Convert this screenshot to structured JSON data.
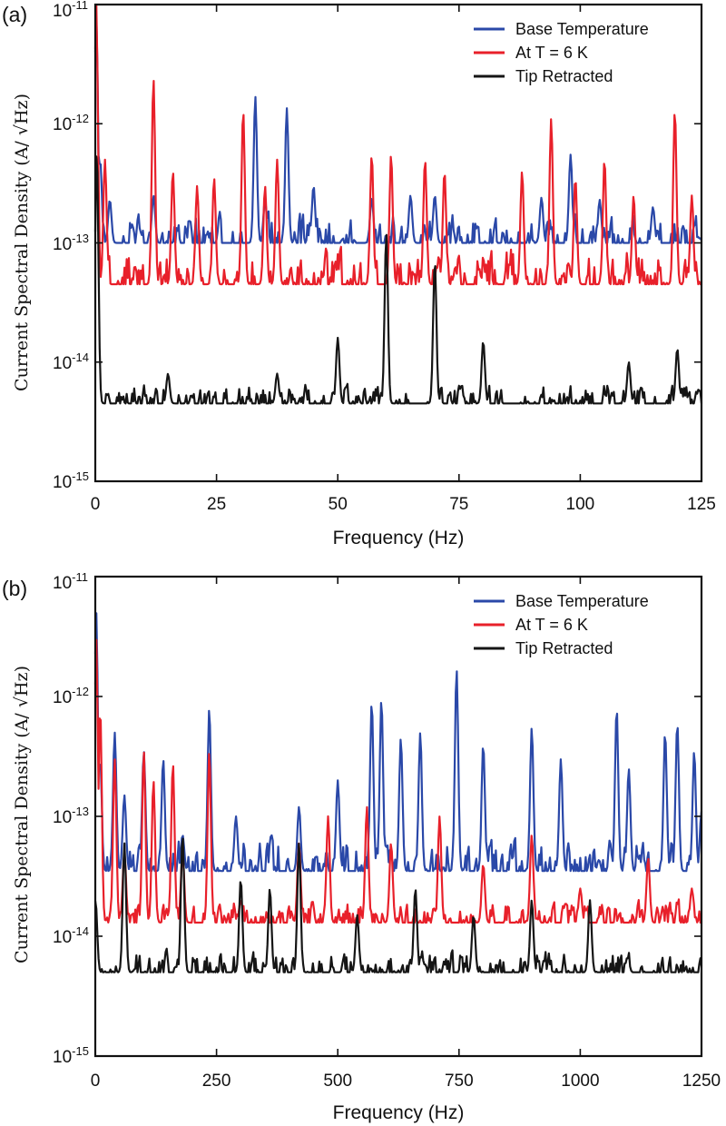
{
  "chart_data": [
    {
      "panel_label": "(a)",
      "type": "line",
      "xlabel": "Frequency (Hz)",
      "ylabel": "Current Spectral Density (A/ √Hz)",
      "xlim": [
        0,
        125
      ],
      "ylim": [
        1e-15,
        1e-11
      ],
      "yscale": "log",
      "x_ticks": [
        0,
        25,
        50,
        75,
        100,
        125
      ],
      "y_ticks": [
        {
          "value": 1e-15,
          "base": "10",
          "exp": "-15"
        },
        {
          "value": 1e-14,
          "base": "10",
          "exp": "-14"
        },
        {
          "value": 1e-13,
          "base": "10",
          "exp": "-13"
        },
        {
          "value": 1e-12,
          "base": "10",
          "exp": "-12"
        },
        {
          "value": 1e-11,
          "base": "10",
          "exp": "-11"
        }
      ],
      "legend_position": "top-right",
      "series": [
        {
          "name": "Base Temperature",
          "color": "#2a48a8",
          "baseline": 1e-13,
          "noise_decades": 0.18,
          "peaks": [
            [
              0.2,
              8e-12
            ],
            [
              1,
              5e-13
            ],
            [
              3,
              2.3e-13
            ],
            [
              12,
              2.5e-13
            ],
            [
              33,
              1.7e-12
            ],
            [
              35,
              2.3e-13
            ],
            [
              39.5,
              1.35e-12
            ],
            [
              45,
              3e-13
            ],
            [
              57,
              2.4e-13
            ],
            [
              65,
              2.5e-13
            ],
            [
              70,
              2.5e-13
            ],
            [
              92,
              2.4e-13
            ],
            [
              98,
              5.5e-13
            ],
            [
              104,
              2.3e-13
            ],
            [
              115,
              2e-13
            ]
          ]
        },
        {
          "name": "At T = 6 K",
          "color": "#e8202a",
          "baseline": 4.5e-14,
          "noise_decades": 0.22,
          "peaks": [
            [
              0.2,
              1e-11
            ],
            [
              2,
              5e-13
            ],
            [
              12,
              2.4e-12
            ],
            [
              16,
              4e-13
            ],
            [
              21,
              3e-13
            ],
            [
              24.5,
              3.5e-13
            ],
            [
              30.5,
              1.3e-12
            ],
            [
              35,
              3e-13
            ],
            [
              37.5,
              5e-13
            ],
            [
              57,
              5.5e-13
            ],
            [
              61,
              5.5e-13
            ],
            [
              68,
              5e-13
            ],
            [
              72,
              4e-13
            ],
            [
              88,
              4e-13
            ],
            [
              94,
              1.1e-12
            ],
            [
              99,
              3.5e-13
            ],
            [
              105,
              5e-13
            ],
            [
              111,
              2.5e-13
            ],
            [
              119.5,
              1.3e-12
            ],
            [
              123,
              2.5e-13
            ]
          ]
        },
        {
          "name": "Tip Retracted",
          "color": "#151515",
          "baseline": 4.5e-15,
          "noise_decades": 0.12,
          "peaks": [
            [
              0.3,
              6e-13
            ],
            [
              15,
              8e-15
            ],
            [
              37.5,
              8e-15
            ],
            [
              50,
              1.6e-14
            ],
            [
              60,
              1.2e-13
            ],
            [
              70,
              7e-14
            ],
            [
              80,
              1.5e-14
            ],
            [
              110,
              1e-14
            ],
            [
              120,
              1.3e-14
            ]
          ]
        }
      ]
    },
    {
      "panel_label": "(b)",
      "type": "line",
      "xlabel": "Frequency (Hz)",
      "ylabel": "Current Spectral Density (A/ √Hz)",
      "xlim": [
        0,
        1250
      ],
      "ylim": [
        1e-15,
        1e-11
      ],
      "yscale": "log",
      "x_ticks": [
        0,
        250,
        500,
        750,
        1000,
        1250
      ],
      "y_ticks": [
        {
          "value": 1e-15,
          "base": "10",
          "exp": "-15"
        },
        {
          "value": 1e-14,
          "base": "10",
          "exp": "-14"
        },
        {
          "value": 1e-13,
          "base": "10",
          "exp": "-13"
        },
        {
          "value": 1e-12,
          "base": "10",
          "exp": "-12"
        },
        {
          "value": 1e-11,
          "base": "10",
          "exp": "-11"
        }
      ],
      "legend_position": "top-right",
      "series": [
        {
          "name": "Base Temperature",
          "color": "#2a48a8",
          "baseline": 3.5e-14,
          "noise_decades": 0.2,
          "peaks": [
            [
              2,
              5e-12
            ],
            [
              10,
              3e-13
            ],
            [
              40,
              5e-13
            ],
            [
              60,
              1.5e-13
            ],
            [
              100,
              3.5e-13
            ],
            [
              140,
              3e-13
            ],
            [
              180,
              7e-14
            ],
            [
              235,
              8e-13
            ],
            [
              290,
              1e-13
            ],
            [
              420,
              1.2e-13
            ],
            [
              500,
              2e-13
            ],
            [
              570,
              9e-13
            ],
            [
              590,
              9.5e-13
            ],
            [
              630,
              4.5e-13
            ],
            [
              670,
              5e-13
            ],
            [
              745,
              1.7e-12
            ],
            [
              800,
              4e-13
            ],
            [
              900,
              5.5e-13
            ],
            [
              960,
              3e-13
            ],
            [
              1075,
              8e-13
            ],
            [
              1100,
              2.5e-13
            ],
            [
              1175,
              5e-13
            ],
            [
              1200,
              6e-13
            ],
            [
              1235,
              3.5e-13
            ],
            [
              1250,
              1.1e-13
            ]
          ]
        },
        {
          "name": "At T = 6 K",
          "color": "#e8202a",
          "baseline": 1.3e-14,
          "noise_decades": 0.14,
          "peaks": [
            [
              2,
              3e-12
            ],
            [
              10,
              8e-13
            ],
            [
              40,
              3e-13
            ],
            [
              60,
              5e-14
            ],
            [
              100,
              3.5e-13
            ],
            [
              120,
              2e-13
            ],
            [
              160,
              2.8e-13
            ],
            [
              180,
              5e-14
            ],
            [
              235,
              3.5e-13
            ],
            [
              300,
              2e-14
            ],
            [
              420,
              6e-14
            ],
            [
              480,
              1e-13
            ],
            [
              560,
              1.2e-13
            ],
            [
              610,
              6e-14
            ],
            [
              710,
              1e-13
            ],
            [
              800,
              4e-14
            ],
            [
              900,
              7e-14
            ],
            [
              1000,
              2.5e-14
            ],
            [
              1140,
              4.5e-14
            ],
            [
              1230,
              2.5e-14
            ]
          ]
        },
        {
          "name": "Tip Retracted",
          "color": "#151515",
          "baseline": 5e-15,
          "noise_decades": 0.13,
          "peaks": [
            [
              0.5,
              2e-14
            ],
            [
              60,
              6e-14
            ],
            [
              180,
              7e-14
            ],
            [
              300,
              3e-14
            ],
            [
              360,
              2.5e-14
            ],
            [
              420,
              6e-14
            ],
            [
              540,
              1.5e-14
            ],
            [
              660,
              2.5e-14
            ],
            [
              780,
              1.5e-14
            ],
            [
              900,
              2e-14
            ],
            [
              1020,
              2e-14
            ]
          ]
        }
      ]
    }
  ]
}
